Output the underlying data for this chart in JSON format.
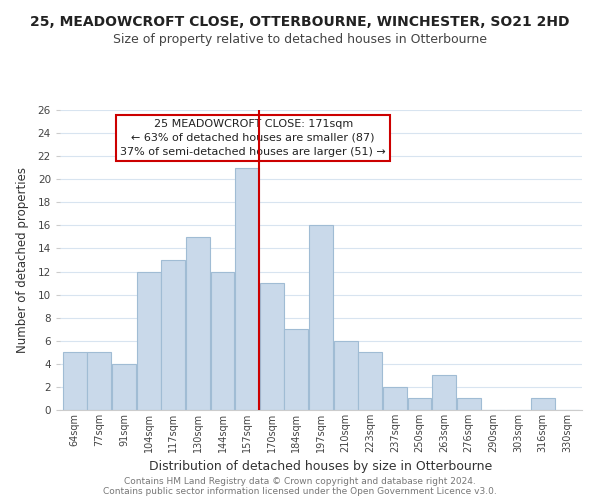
{
  "title": "25, MEADOWCROFT CLOSE, OTTERBOURNE, WINCHESTER, SO21 2HD",
  "subtitle": "Size of property relative to detached houses in Otterbourne",
  "xlabel": "Distribution of detached houses by size in Otterbourne",
  "ylabel": "Number of detached properties",
  "bar_color": "#c9d9ea",
  "bar_edge_color": "#a0bcd4",
  "bins": [
    "64sqm",
    "77sqm",
    "91sqm",
    "104sqm",
    "117sqm",
    "130sqm",
    "144sqm",
    "157sqm",
    "170sqm",
    "184sqm",
    "197sqm",
    "210sqm",
    "223sqm",
    "237sqm",
    "250sqm",
    "263sqm",
    "276sqm",
    "290sqm",
    "303sqm",
    "316sqm",
    "330sqm"
  ],
  "values": [
    5,
    5,
    4,
    12,
    13,
    15,
    12,
    21,
    11,
    7,
    16,
    6,
    5,
    2,
    1,
    3,
    1,
    0,
    0,
    1,
    0
  ],
  "marker_line_color": "#cc0000",
  "marker_index": 7,
  "ylim": [
    0,
    26
  ],
  "yticks": [
    0,
    2,
    4,
    6,
    8,
    10,
    12,
    14,
    16,
    18,
    20,
    22,
    24,
    26
  ],
  "annotation_title": "25 MEADOWCROFT CLOSE: 171sqm",
  "annotation_line1": "← 63% of detached houses are smaller (87)",
  "annotation_line2": "37% of semi-detached houses are larger (51) →",
  "annotation_box_color": "#ffffff",
  "annotation_box_edge": "#cc0000",
  "footer1": "Contains HM Land Registry data © Crown copyright and database right 2024.",
  "footer2": "Contains public sector information licensed under the Open Government Licence v3.0.",
  "background_color": "#ffffff",
  "grid_color": "#d8e4f0",
  "title_fontsize": 10,
  "subtitle_fontsize": 9
}
